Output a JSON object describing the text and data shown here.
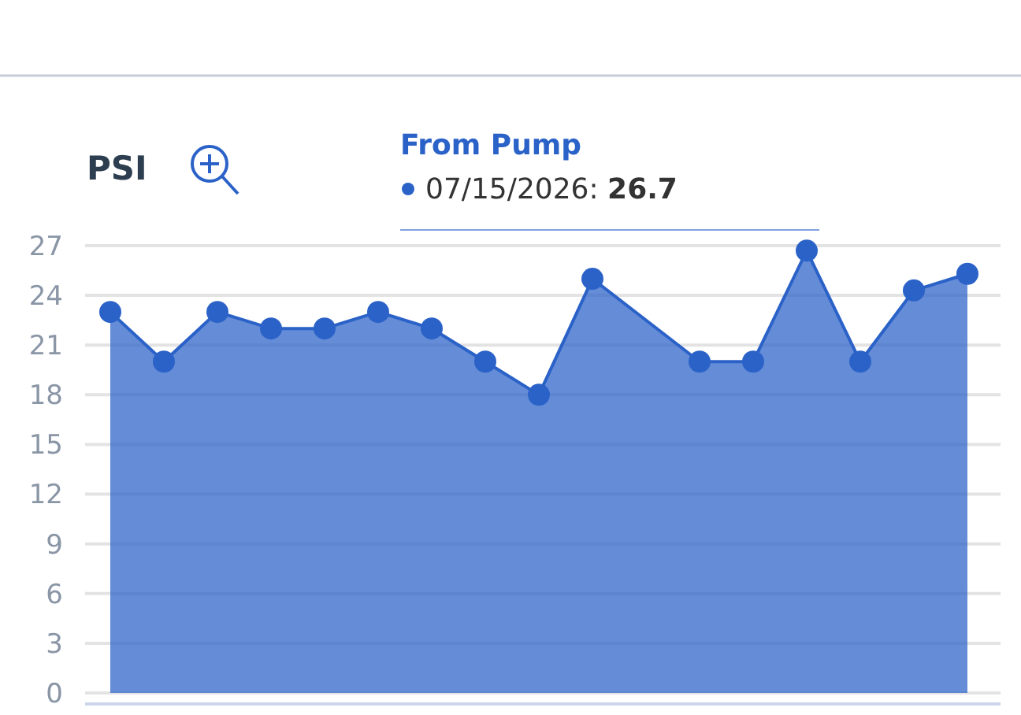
{
  "chart_data": {
    "type": "area",
    "title": "PSI",
    "categories": [
      null,
      null,
      null,
      null,
      null,
      null,
      null,
      null,
      null,
      null,
      null,
      null,
      null,
      null,
      null,
      null,
      null
    ],
    "series": [
      {
        "color": "#2b62c8",
        "values": [
          23,
          20,
          23,
          22,
          22,
          23,
          22,
          20,
          18,
          25,
          null,
          20,
          20,
          26.7,
          20,
          24.3,
          25.3
        ]
      }
    ],
    "ylim": [
      0,
      27
    ],
    "yticks": [
      0,
      3,
      6,
      9,
      12,
      15,
      18,
      21,
      24,
      27
    ],
    "grid": "y",
    "marker": "circle",
    "tick_labels": "y",
    "annotations": [
      "From Pump",
      "07/15/2026: 26.7"
    ]
  }
}
